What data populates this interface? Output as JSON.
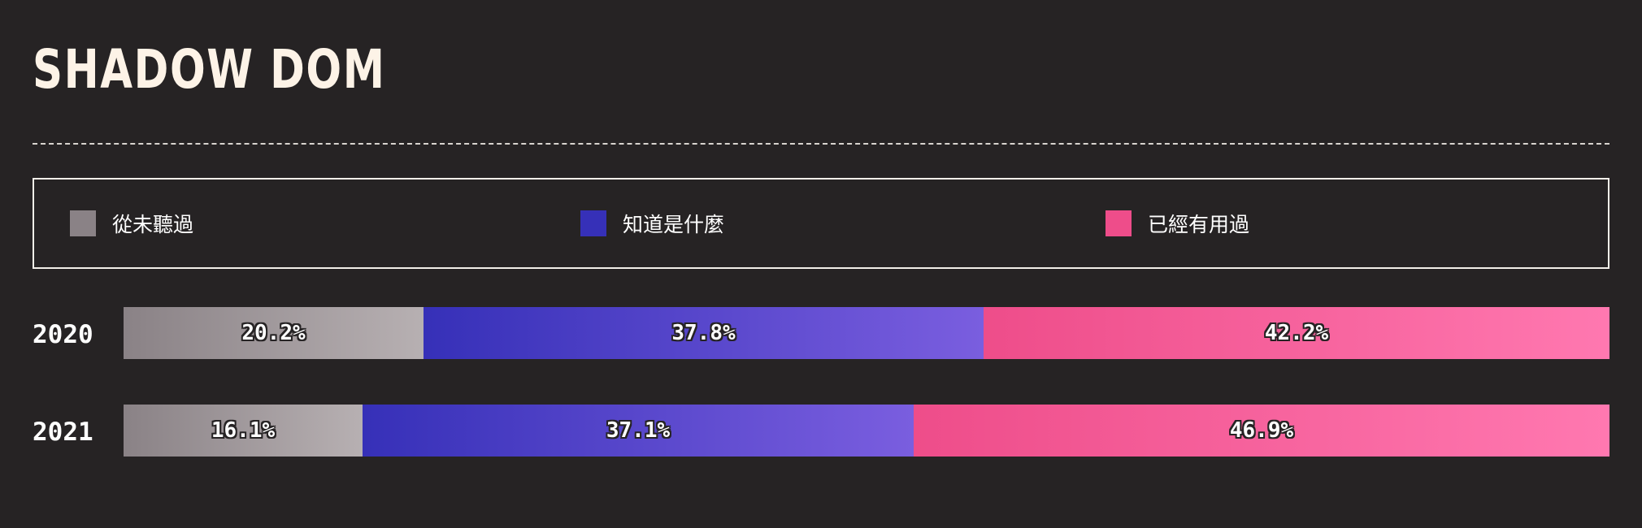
{
  "title": "SHADOW DOM",
  "colors": {
    "never": [
      "#8a8286",
      "#b7b0b2"
    ],
    "know": [
      "#3630b8",
      "#7a5edf"
    ],
    "used": [
      "#ee4d8a",
      "#ff78b0"
    ]
  },
  "chart_data": {
    "type": "bar",
    "orientation": "horizontal",
    "stacked": true,
    "normalized": true,
    "title": "SHADOW DOM",
    "legend": {
      "placement": "top",
      "entries": [
        {
          "key": "never",
          "label": "從未聽過"
        },
        {
          "key": "know",
          "label": "知道是什麼"
        },
        {
          "key": "used",
          "label": "已經有用過"
        }
      ]
    },
    "categories": [
      "2020",
      "2021"
    ],
    "series": [
      {
        "name": "從未聽過",
        "key": "never",
        "values": [
          20.2,
          16.1
        ],
        "labels": [
          "20.2%",
          "16.1%"
        ]
      },
      {
        "name": "知道是什麼",
        "key": "know",
        "values": [
          37.8,
          37.1
        ],
        "labels": [
          "37.8%",
          "37.1%"
        ]
      },
      {
        "name": "已經有用過",
        "key": "used",
        "values": [
          42.2,
          46.9
        ],
        "labels": [
          "42.2%",
          "46.9%"
        ]
      }
    ],
    "xlim": [
      0,
      100
    ]
  }
}
